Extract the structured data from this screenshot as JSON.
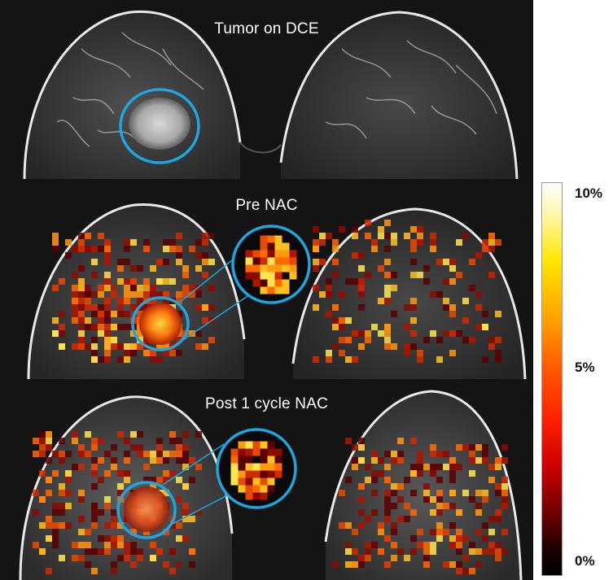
{
  "panels": [
    {
      "title": "Tumor on DCE",
      "overlay": false
    },
    {
      "title": "Pre NAC",
      "overlay": true
    },
    {
      "title": "Post 1 cycle NAC",
      "overlay": true
    }
  ],
  "colorbar": {
    "max_label": "10%",
    "mid_label": "5%",
    "min_label": "0%"
  },
  "colors": {
    "circle": "#1ea6e0",
    "background": "#141414",
    "outline": "#e8e8e8"
  }
}
